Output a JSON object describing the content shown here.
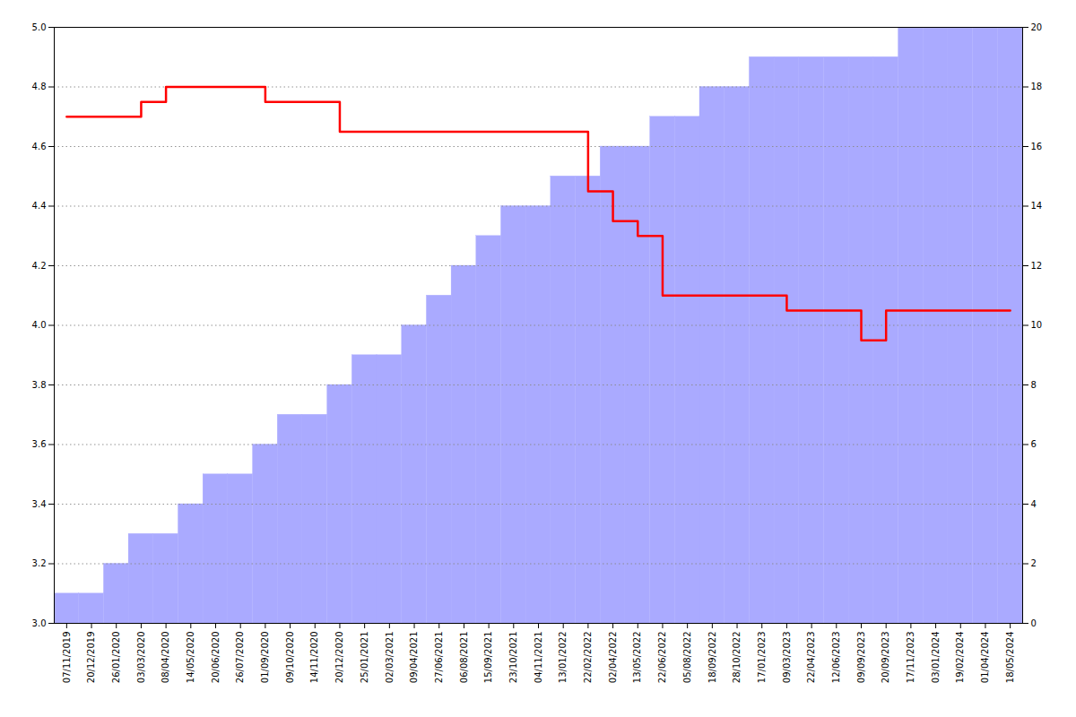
{
  "chart_data": {
    "type": "bar",
    "categories": [
      "07/11/2019",
      "20/12/2019",
      "26/01/2020",
      "03/03/2020",
      "08/04/2020",
      "14/05/2020",
      "20/06/2020",
      "26/07/2020",
      "01/09/2020",
      "09/10/2020",
      "14/11/2020",
      "20/12/2020",
      "25/01/2021",
      "02/03/2021",
      "09/04/2021",
      "27/06/2021",
      "06/08/2021",
      "15/09/2021",
      "23/10/2021",
      "04/11/2021",
      "13/01/2022",
      "22/02/2022",
      "02/04/2022",
      "13/05/2022",
      "22/06/2022",
      "05/08/2022",
      "18/09/2022",
      "28/10/2022",
      "17/01/2023",
      "09/03/2023",
      "22/04/2023",
      "12/06/2023",
      "09/09/2023",
      "20/09/2023",
      "17/11/2023",
      "03/01/2024",
      "19/02/2024",
      "01/04/2024",
      "18/05/2024"
    ],
    "series": [
      {
        "type": "bar",
        "axis": "y2",
        "color": "#aaaaff",
        "values": [
          1,
          1,
          2,
          3,
          3,
          4,
          5,
          5,
          6,
          7,
          7,
          8,
          9,
          9,
          10,
          11,
          12,
          13,
          14,
          14,
          15,
          15,
          16,
          16,
          17,
          17,
          18,
          18,
          19,
          19,
          19,
          19,
          19,
          19,
          20,
          20,
          20,
          20,
          20
        ]
      },
      {
        "type": "step",
        "color": "#ff0000",
        "values": [
          4.7,
          4.7,
          4.7,
          4.75,
          4.8,
          4.8,
          4.8,
          4.8,
          4.75,
          4.75,
          4.75,
          4.65,
          4.65,
          4.65,
          4.65,
          4.65,
          4.65,
          4.65,
          4.65,
          4.65,
          4.65,
          4.45,
          4.35,
          4.3,
          4.1,
          4.1,
          4.1,
          4.1,
          4.1,
          4.05,
          4.05,
          4.05,
          3.95,
          4.05,
          4.05,
          4.05,
          4.05,
          4.05,
          4.05
        ]
      }
    ],
    "ylim": [
      3.0,
      5.0
    ],
    "yticks": [
      {
        "value": 3.0,
        "label": "3.0"
      },
      3.2,
      3.4,
      3.6,
      3.8,
      {
        "value": 4.0,
        "label": "4.0"
      },
      4.2,
      4.4,
      4.6,
      4.8,
      {
        "value": 5.0,
        "label": "5.0"
      }
    ],
    "y2lim": [
      0,
      20
    ],
    "y2ticks": [
      0,
      2,
      4,
      6,
      8,
      10,
      12,
      14,
      16,
      18,
      20
    ],
    "grid": true
  }
}
